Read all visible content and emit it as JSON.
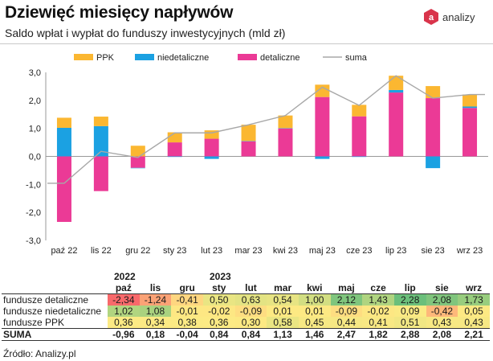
{
  "header": {
    "title": "Dziewięć miesięcy napływów",
    "subtitle": "Saldo wpłat i wypłat do funduszy inwestycyjnych (mld zł)",
    "logo_text": "analizy",
    "logo_mark": "a"
  },
  "colors": {
    "ppk": "#fbb731",
    "niedetaliczne": "#1ba1e2",
    "detaliczne": "#eb3a96",
    "suma": "#a8a8a8"
  },
  "chart_data": {
    "type": "bar",
    "stacked": true,
    "categories": [
      "paź 22",
      "lis 22",
      "gru 22",
      "sty 23",
      "lut 23",
      "mar 23",
      "kwi 23",
      "maj 23",
      "cze 23",
      "lip 23",
      "sie 23",
      "wrz 23"
    ],
    "series": [
      {
        "name": "PPK",
        "color": "#fbb731",
        "values": [
          0.36,
          0.34,
          0.38,
          0.36,
          0.3,
          0.58,
          0.45,
          0.44,
          0.41,
          0.51,
          0.43,
          0.43
        ]
      },
      {
        "name": "niedetaliczne",
        "color": "#1ba1e2",
        "values": [
          1.02,
          1.08,
          -0.01,
          -0.02,
          -0.09,
          0.01,
          0.01,
          -0.09,
          -0.02,
          0.09,
          -0.42,
          0.05
        ]
      },
      {
        "name": "detaliczne",
        "color": "#eb3a96",
        "values": [
          -2.34,
          -1.24,
          -0.41,
          0.5,
          0.63,
          0.54,
          1.0,
          2.12,
          1.43,
          2.28,
          2.08,
          1.73
        ]
      }
    ],
    "line": {
      "name": "suma",
      "color": "#a8a8a8",
      "values": [
        -0.96,
        0.18,
        -0.04,
        0.84,
        0.84,
        1.13,
        1.46,
        2.47,
        1.82,
        2.88,
        2.08,
        2.21
      ]
    },
    "ylim": [
      -3.0,
      3.0
    ],
    "yticks": [
      "-3,0",
      "-2,0",
      "-1,0",
      "0,0",
      "1,0",
      "2,0",
      "3,0"
    ],
    "grid": false,
    "legend_position": "top"
  },
  "table": {
    "years": [
      {
        "label": "2022",
        "span": 3
      },
      {
        "label": "2023",
        "span": 9
      }
    ],
    "months": [
      "paź",
      "lis",
      "gru",
      "sty",
      "lut",
      "mar",
      "kwi",
      "maj",
      "cze",
      "lip",
      "sie",
      "wrz"
    ],
    "rows": [
      {
        "label": "fundusze detaliczne",
        "values": [
          "-2,34",
          "-1,24",
          "-0,41",
          "0,50",
          "0,63",
          "0,54",
          "1,00",
          "2,12",
          "1,43",
          "2,28",
          "2,08",
          "1,73"
        ],
        "colors": [
          "#f8696b",
          "#fba276",
          "#fed680",
          "#e9e583",
          "#e3e383",
          "#e7e483",
          "#d2de82",
          "#7fc57d",
          "#afd480",
          "#6bbf7b",
          "#80c57d",
          "#98cd7e"
        ]
      },
      {
        "label": "fundusze niedetaliczne",
        "values": [
          "1,02",
          "1,08",
          "-0,01",
          "-0,02",
          "-0,09",
          "0,01",
          "0,01",
          "-0,09",
          "-0,02",
          "0,09",
          "-0,42",
          "0,05"
        ],
        "colors": [
          "#b1d580",
          "#a9d27f",
          "#fde783",
          "#fde783",
          "#fedd81",
          "#fde983",
          "#fde983",
          "#fedd81",
          "#fde783",
          "#fbea84",
          "#feb87a",
          "#fde983"
        ]
      },
      {
        "label": "fundusze PPK",
        "values": [
          "0,36",
          "0,34",
          "0,38",
          "0,36",
          "0,30",
          "0,58",
          "0,45",
          "0,44",
          "0,41",
          "0,51",
          "0,43",
          "0,43"
        ],
        "colors": [
          "#fcea84",
          "#fcea84",
          "#fbea84",
          "#fcea84",
          "#fce983",
          "#eae583",
          "#f6e884",
          "#f6e884",
          "#f8e884",
          "#f1e784",
          "#f7e884",
          "#f7e884"
        ]
      }
    ],
    "suma": {
      "label": "SUMA",
      "values": [
        "-0,96",
        "0,18",
        "-0,04",
        "0,84",
        "0,84",
        "1,13",
        "1,46",
        "2,47",
        "1,82",
        "2,88",
        "2,08",
        "2,21"
      ]
    }
  },
  "footer": {
    "source": "Źródło: Analizy.pl"
  }
}
